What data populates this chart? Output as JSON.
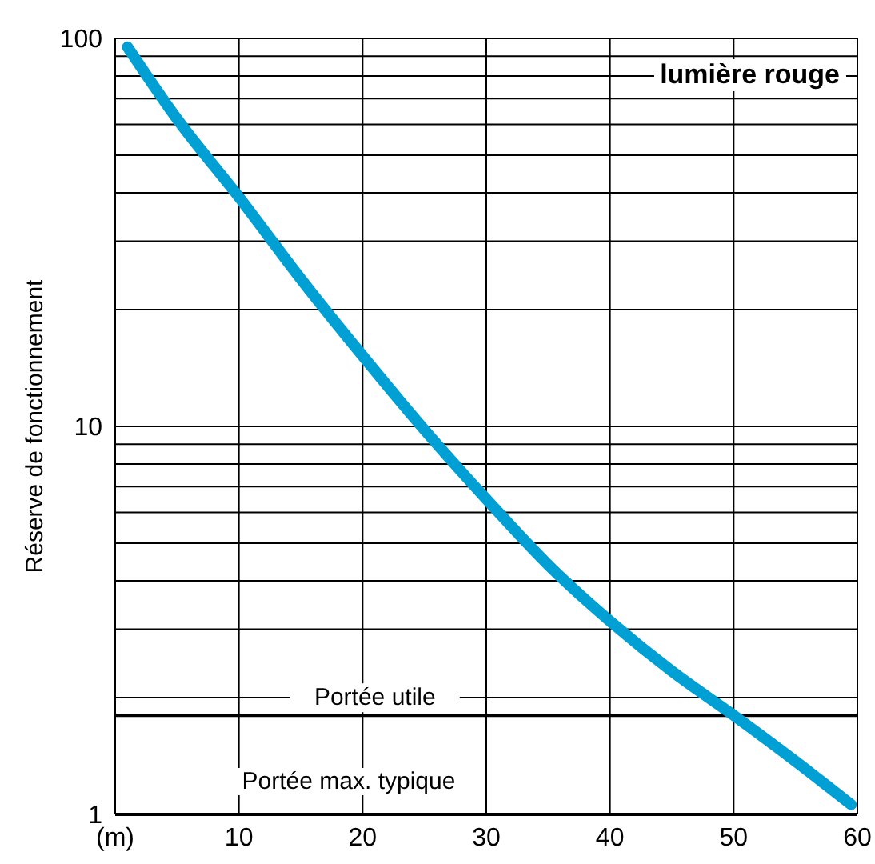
{
  "chart_data": {
    "type": "line",
    "title": "lumière rouge",
    "ylabel": "Réserve de fonctionnement",
    "log": "y",
    "grid": true,
    "legend": false,
    "marker": "none",
    "line_style": "solid",
    "xlim": [
      0,
      60
    ],
    "xticks": [
      {
        "value": 0,
        "label": "(m)"
      },
      10,
      20,
      30,
      40,
      50,
      60
    ],
    "ylim": [
      1,
      100
    ],
    "yticks": [
      1,
      {
        "value": 2,
        "label": null
      },
      {
        "value": 3,
        "label": null
      },
      {
        "value": 4,
        "label": null
      },
      {
        "value": 5,
        "label": null
      },
      {
        "value": 6,
        "label": null
      },
      {
        "value": 7,
        "label": null
      },
      {
        "value": 8,
        "label": null
      },
      {
        "value": 9,
        "label": null
      },
      10,
      {
        "value": 20,
        "label": null
      },
      {
        "value": 30,
        "label": null
      },
      {
        "value": 40,
        "label": null
      },
      {
        "value": 50,
        "label": null
      },
      {
        "value": 60,
        "label": null
      },
      {
        "value": 70,
        "label": null
      },
      {
        "value": 80,
        "label": null
      },
      {
        "value": 90,
        "label": null
      },
      100
    ],
    "series": [
      {
        "color": "#009fd4",
        "x": [
          1,
          5,
          10,
          15,
          20,
          25,
          30,
          35,
          40,
          45,
          50,
          55,
          59.5
        ],
        "values": [
          95,
          62,
          39,
          24,
          15.2,
          9.8,
          6.5,
          4.4,
          3.15,
          2.34,
          1.8,
          1.37,
          1.06
        ]
      }
    ],
    "ref_lines": [
      {
        "axis": "y",
        "value": 1.8,
        "label": "Portée utile",
        "color": "#000000"
      }
    ],
    "annotations": [
      "Portée max. typique"
    ]
  }
}
